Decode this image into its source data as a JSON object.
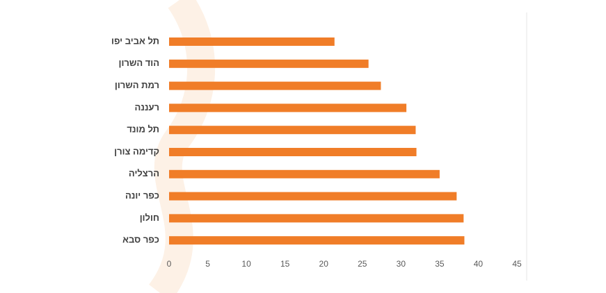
{
  "chart_data": {
    "type": "bar",
    "orientation": "horizontal",
    "categories": [
      "תל אביב יפו",
      "הוד השרון",
      "רמת השרון",
      "רעננה",
      "תל מונד",
      "קדימה צורן",
      "הרצליה",
      "כפר יונה",
      "חולון",
      "כפר סבא"
    ],
    "values": [
      21.4,
      25.8,
      27.4,
      30.7,
      31.9,
      32.0,
      35.0,
      37.2,
      38.1,
      38.2
    ],
    "color": "#f07d28",
    "xlim": [
      0,
      45
    ],
    "xticks": [
      0,
      5,
      10,
      15,
      20,
      25,
      30,
      35,
      40,
      45
    ],
    "grid": false
  }
}
